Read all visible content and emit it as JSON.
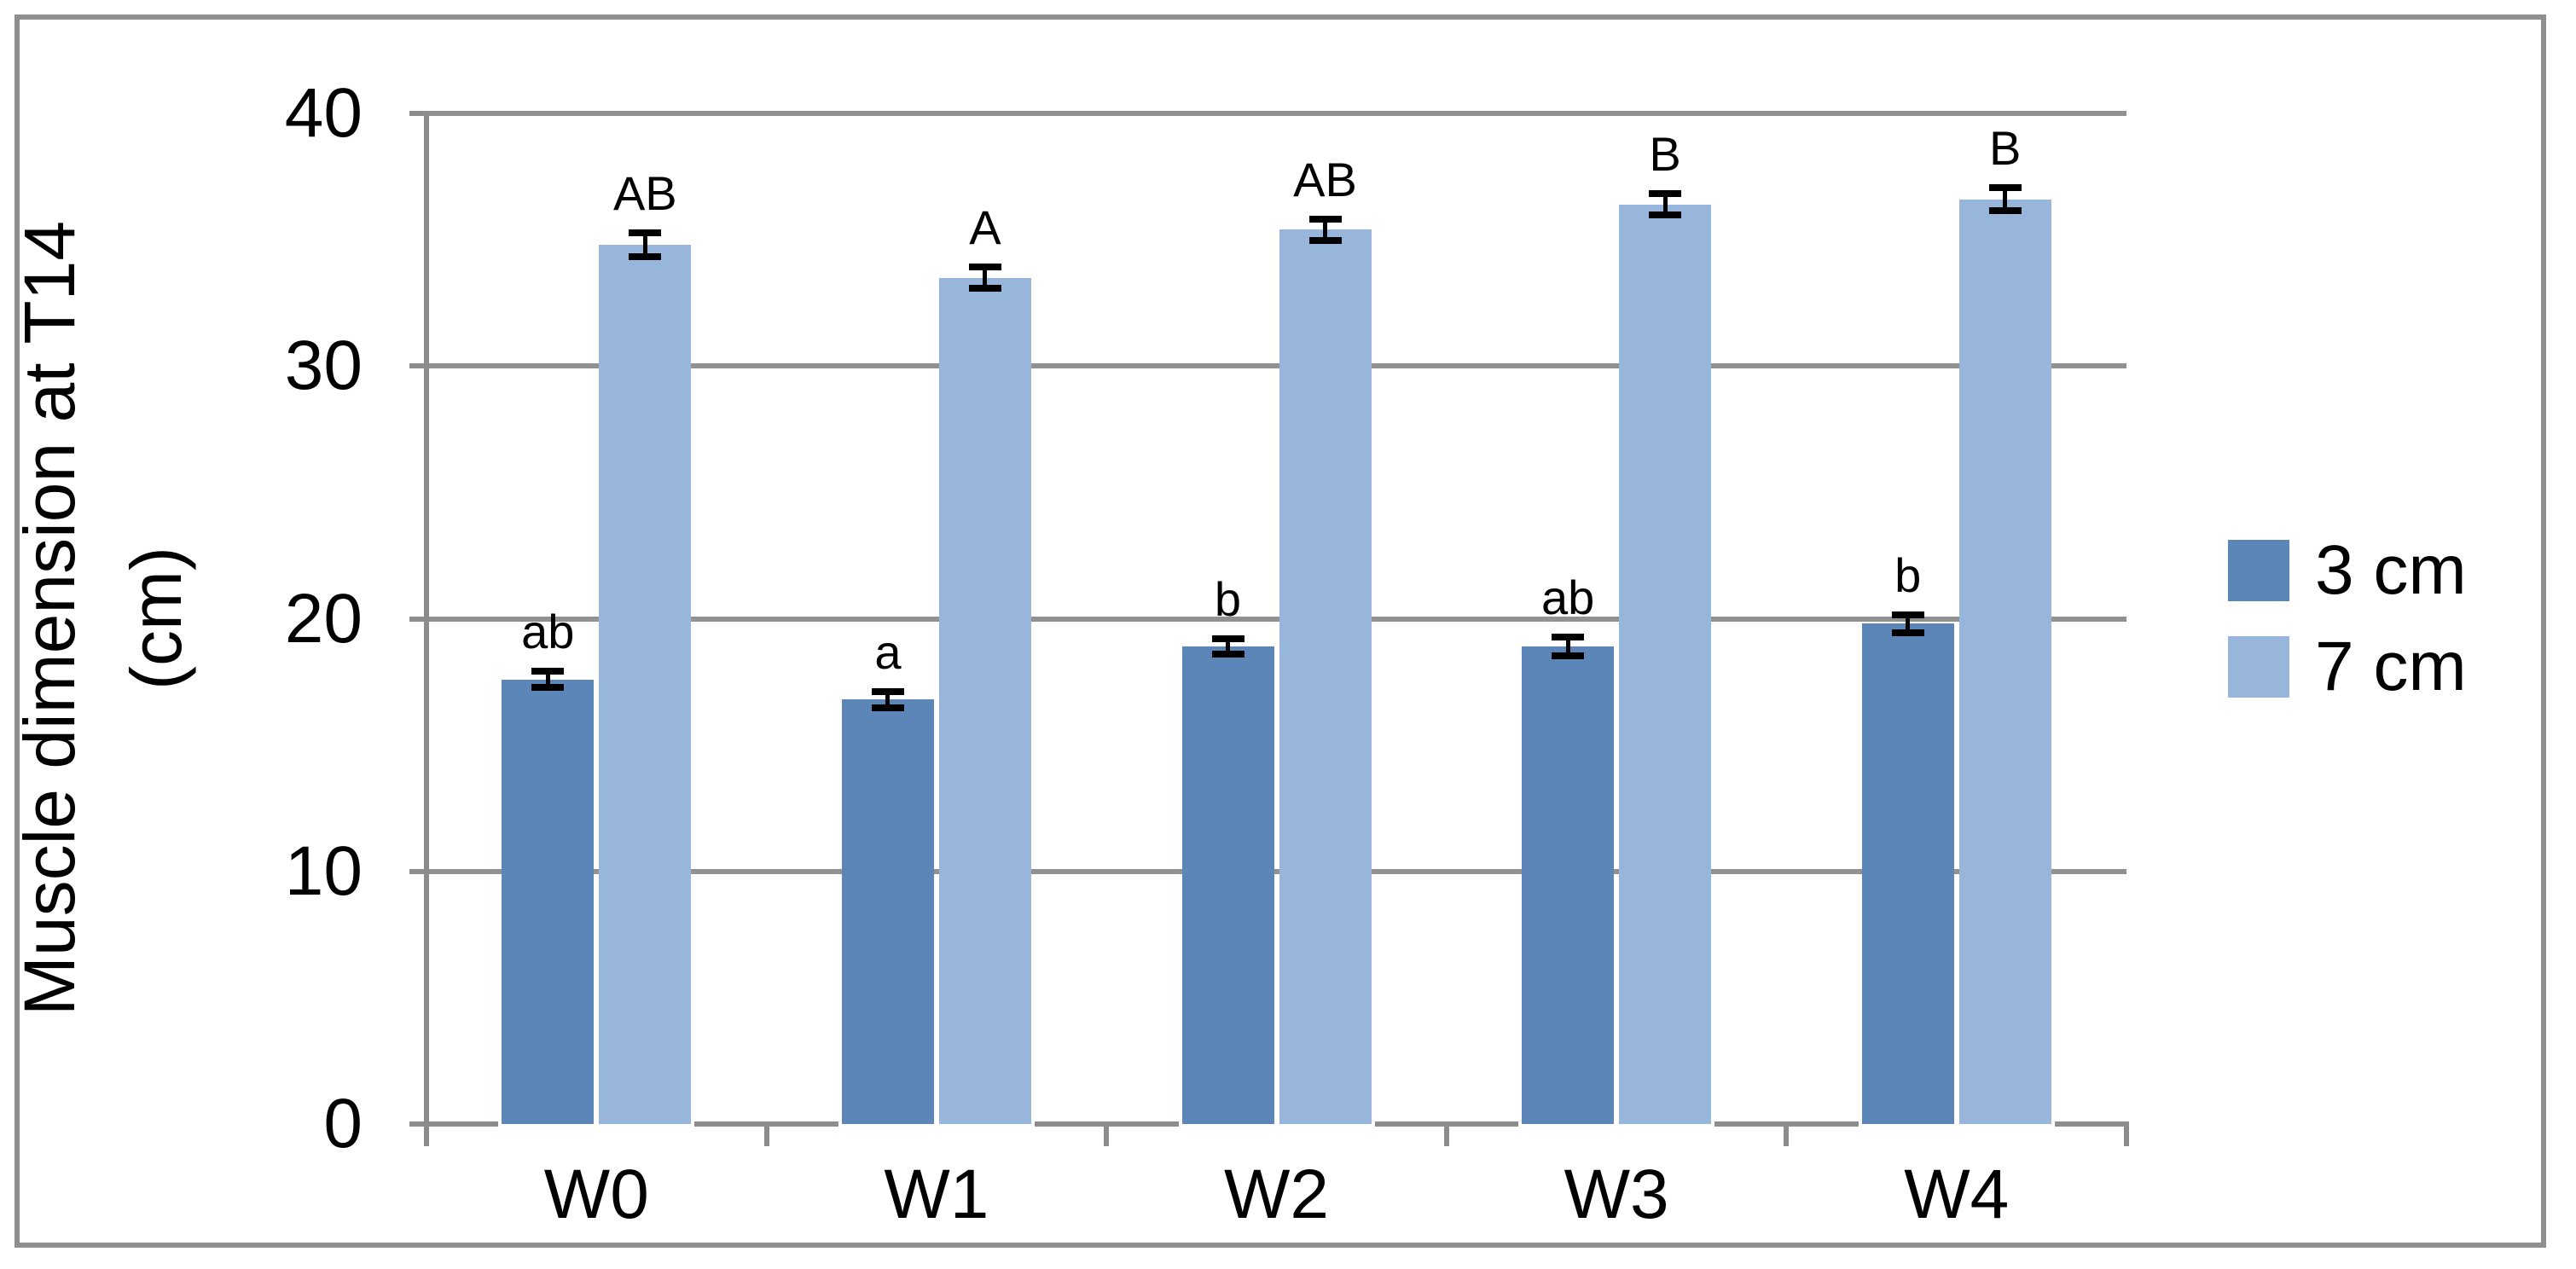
{
  "figure": {
    "background_color": "#FFFFFF",
    "border_color": "#8F8F8F",
    "gridline_color": "#919191",
    "axis_color": "#8C8C8C",
    "text_color": "#000000"
  },
  "chart_data": {
    "type": "bar",
    "title": "",
    "xlabel": "",
    "ylabel": "Muscle dimension at T14 (cm)",
    "ylabel_line1": "Muscle dimension at T14",
    "ylabel_line2": "(cm)",
    "ylim": [
      0,
      40
    ],
    "yticks": [
      0,
      10,
      20,
      30,
      40
    ],
    "grid": "horizontal gridlines at 10, 20, 30, 40",
    "legend_position": "right",
    "categories": [
      "W0",
      "W1",
      "W2",
      "W3",
      "W4"
    ],
    "series": [
      {
        "name": "3 cm",
        "color": "#5C85B8",
        "values": [
          17.6,
          16.8,
          18.9,
          18.9,
          19.8
        ],
        "error_bars": [
          0.45,
          0.45,
          0.45,
          0.5,
          0.5
        ],
        "sig_letters": [
          "ab",
          "a",
          "b",
          "ab",
          "b"
        ]
      },
      {
        "name": "7 cm",
        "color": "#98B6DB",
        "values": [
          34.8,
          33.5,
          35.4,
          36.4,
          36.6
        ],
        "error_bars": [
          0.6,
          0.55,
          0.55,
          0.55,
          0.6
        ],
        "sig_letters": [
          "AB",
          "A",
          "AB",
          "B",
          "B"
        ]
      }
    ]
  },
  "legend": {
    "items": [
      "3 cm",
      "7 cm"
    ]
  }
}
